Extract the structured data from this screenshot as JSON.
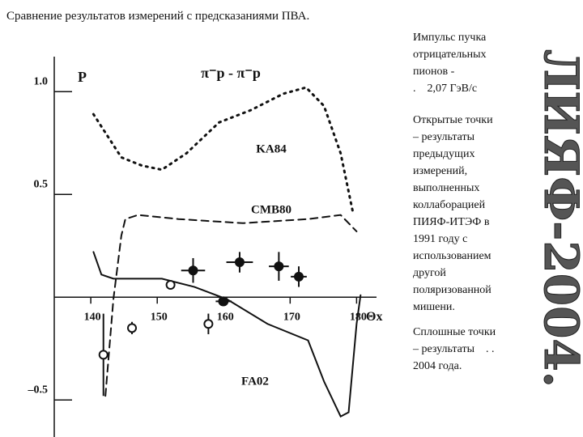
{
  "title": "Сравнение результатов измерений с предсказаниями ПВА.",
  "sidebar": [
    {
      "lines": [
        "Импульс пучка",
        "отрицательных",
        "пионов -",
        ".    2,07 ГэВ/с"
      ]
    },
    {
      "lines": [
        "Открытые точки",
        "– результаты",
        "предыдущих",
        "измерений,",
        "выполненных",
        "коллаборацией",
        "ПИЯФ-ИТЭФ в",
        "1991 году с",
        "использованием",
        "другой",
        "поляризованной",
        "мишени."
      ]
    },
    {
      "lines": [
        "Сплошные точки",
        "– результаты    . .",
        "2004 года."
      ]
    }
  ],
  "watermark": "ЛИЯФ-2004.",
  "chart_data": {
    "type": "line",
    "subtitle": "π⁻p -  π⁻p",
    "y_label": "P",
    "x_label": "Θx",
    "xlim": [
      134.5,
      183
    ],
    "ylim": [
      -0.68,
      1.17
    ],
    "xticks": [
      140,
      150,
      160,
      170,
      180
    ],
    "yticks": [
      {
        "value": 1,
        "label": "1.0"
      },
      0.5,
      {
        "value": -0.5,
        "label": "–0.5"
      }
    ],
    "series": [
      {
        "name": "KA84",
        "type": "line",
        "style": "dotted",
        "color": "#111111",
        "x": [
          140.4,
          142.2,
          144.6,
          147.7,
          150.7,
          154.4,
          159.3,
          164.1,
          169,
          172.4,
          175.1,
          177.6,
          179.4
        ],
        "values": [
          0.89,
          0.8,
          0.68,
          0.64,
          0.62,
          0.7,
          0.85,
          0.91,
          0.99,
          1.02,
          0.93,
          0.7,
          0.42
        ]
      },
      {
        "name": "CMB80",
        "type": "line",
        "style": "dashed",
        "color": "#111111",
        "x": [
          142.2,
          143.4,
          144.6,
          145.2,
          147.1,
          153.2,
          162.9,
          172.7,
          177.6,
          180
        ],
        "values": [
          -0.48,
          -0.01,
          0.3,
          0.38,
          0.4,
          0.38,
          0.36,
          0.38,
          0.4,
          0.32
        ]
      },
      {
        "name": "FA02",
        "type": "line",
        "style": "solid",
        "color": "#111111",
        "x": [
          140.4,
          141.6,
          143.4,
          150.7,
          155.6,
          160.5,
          166.6,
          172.7,
          175.1,
          177.6,
          178.8,
          180,
          180.6
        ],
        "values": [
          0.22,
          0.11,
          0.09,
          0.09,
          0.05,
          -0.01,
          -0.13,
          -0.21,
          -0.41,
          -0.58,
          -0.56,
          -0.13,
          0.01
        ]
      },
      {
        "type": "scatter",
        "fill": "none",
        "color": "#111111",
        "x": [
          141.9,
          146.2,
          152,
          157.7,
          159.9
        ],
        "values": [
          -0.28,
          -0.15,
          0.06,
          -0.13,
          -0.02
        ],
        "errors": [
          0.2,
          0.03,
          0.02,
          0.05,
          0.02
        ]
      },
      {
        "type": "scatter",
        "fill": "#111111",
        "color": "#111111",
        "x": [
          155.4,
          160,
          162.4,
          168.3,
          171.3
        ],
        "values": [
          0.13,
          -0.02,
          0.17,
          0.15,
          0.1
        ],
        "errors": [
          0.06,
          0.02,
          0.05,
          0.07,
          0.05
        ],
        "xerrors": [
          1.8,
          1.2,
          2,
          1.5,
          1.2
        ]
      }
    ]
  }
}
